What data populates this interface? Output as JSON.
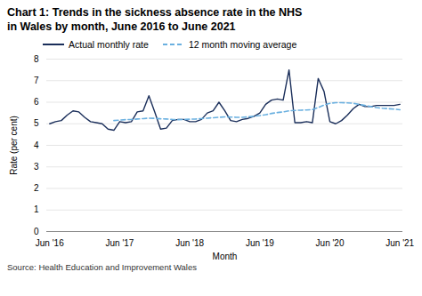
{
  "chart_data": {
    "type": "line",
    "title": "Chart 1: Trends in the sickness absence rate in the NHS",
    "subtitle": "in Wales by month, June 2016 to June 2021",
    "x_label": "Month",
    "y_label": "Rate (per cent)",
    "caption": "Source: Health Education and Improvement Wales",
    "categories": [
      "Jun '16",
      null,
      null,
      null,
      null,
      null,
      null,
      null,
      null,
      null,
      null,
      null,
      "Jun '17",
      null,
      null,
      null,
      null,
      null,
      null,
      null,
      null,
      null,
      null,
      null,
      "Jun '18",
      null,
      null,
      null,
      null,
      null,
      null,
      null,
      null,
      null,
      null,
      null,
      "Jun '19",
      null,
      null,
      null,
      null,
      null,
      null,
      null,
      null,
      null,
      null,
      null,
      "Jun '20",
      null,
      null,
      null,
      null,
      null,
      null,
      null,
      null,
      null,
      null,
      null,
      "Jun '21"
    ],
    "series": [
      {
        "name": "Actual monthly rate",
        "color": "#1a2e5a",
        "line_style": "solid",
        "values": [
          5.0,
          5.1,
          5.15,
          5.4,
          5.6,
          5.55,
          5.3,
          5.1,
          5.05,
          5.0,
          4.75,
          4.7,
          5.1,
          5.05,
          5.1,
          5.55,
          5.6,
          6.3,
          5.55,
          4.75,
          4.8,
          5.15,
          5.2,
          5.2,
          5.1,
          5.1,
          5.2,
          5.5,
          5.6,
          6.0,
          5.6,
          5.15,
          5.1,
          5.2,
          5.25,
          5.35,
          5.5,
          5.9,
          6.1,
          6.15,
          6.1,
          7.5,
          5.05,
          5.05,
          5.1,
          5.05,
          7.1,
          6.5,
          5.1,
          5.0,
          5.15,
          5.4,
          5.7,
          5.9,
          5.8,
          5.8,
          5.85,
          5.85,
          5.85,
          5.85,
          5.9
        ]
      },
      {
        "name": "12 month moving average",
        "color": "#6ab0e0",
        "line_style": "dashed",
        "values": [
          null,
          null,
          null,
          null,
          null,
          null,
          null,
          null,
          null,
          null,
          null,
          5.15,
          5.17,
          5.19,
          5.2,
          5.22,
          5.24,
          5.26,
          5.25,
          5.23,
          5.22,
          5.2,
          5.19,
          5.2,
          5.21,
          5.22,
          5.24,
          5.26,
          5.28,
          5.3,
          5.32,
          5.31,
          5.3,
          5.3,
          5.32,
          5.35,
          5.38,
          5.42,
          5.48,
          5.52,
          5.55,
          5.6,
          5.62,
          5.63,
          5.64,
          5.66,
          5.75,
          5.87,
          5.95,
          5.98,
          5.98,
          5.97,
          5.95,
          5.9,
          5.85,
          5.8,
          5.75,
          5.72,
          5.7,
          5.68,
          5.65
        ]
      }
    ],
    "ylim": [
      0,
      8
    ],
    "yticks": [
      0,
      1,
      2,
      3,
      4,
      5,
      6,
      7,
      8
    ],
    "grid": true,
    "legend": "upper left"
  }
}
